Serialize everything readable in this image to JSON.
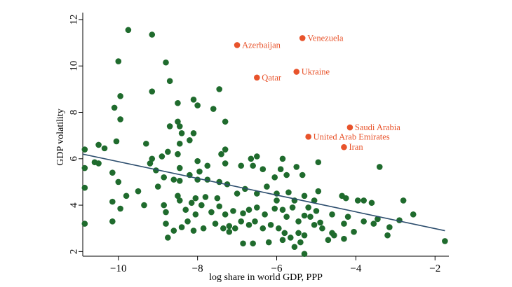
{
  "chart_data": {
    "type": "scatter",
    "xlabel": "log share in world GDP, PPP",
    "ylabel": "GDP volatility",
    "xlim": [
      -10.9,
      -1.65
    ],
    "ylim": [
      1.8,
      12.3
    ],
    "x_ticks": [
      -10,
      -8,
      -6,
      -4,
      -2
    ],
    "y_ticks": [
      2,
      4,
      6,
      8,
      10,
      12
    ],
    "grid": false,
    "colors": {
      "points": "#1f6b2d",
      "highlight": "#e8532b",
      "fit": "#2d4e6e"
    },
    "fit_line": {
      "x": [
        -10.9,
        -1.75
      ],
      "y": [
        6.2,
        2.9
      ]
    },
    "highlighted": [
      {
        "label": "Azerbaijan",
        "x": -7.0,
        "y": 10.9
      },
      {
        "label": "Venezuela",
        "x": -5.35,
        "y": 11.2
      },
      {
        "label": "Qatar",
        "x": -6.5,
        "y": 9.5
      },
      {
        "label": "Ukraine",
        "x": -5.5,
        "y": 9.75
      },
      {
        "label": "Saudi Arabia",
        "x": -4.15,
        "y": 7.35
      },
      {
        "label": "United Arab Emirates",
        "x": -5.2,
        "y": 6.95
      },
      {
        "label": "Iran",
        "x": -4.3,
        "y": 6.5
      }
    ],
    "points": [
      [
        -9.75,
        11.55
      ],
      [
        -9.15,
        11.35
      ],
      [
        -10.0,
        10.2
      ],
      [
        -8.8,
        10.15
      ],
      [
        -9.95,
        8.7
      ],
      [
        -10.1,
        8.2
      ],
      [
        -9.15,
        8.9
      ],
      [
        -9.95,
        7.7
      ],
      [
        -8.7,
        9.35
      ],
      [
        -8.5,
        8.4
      ],
      [
        -8.1,
        8.55
      ],
      [
        -8.0,
        8.3
      ],
      [
        -7.45,
        9.0
      ],
      [
        -7.6,
        8.15
      ],
      [
        -8.5,
        7.6
      ],
      [
        -8.7,
        7.4
      ],
      [
        -8.45,
        7.4
      ],
      [
        -8.4,
        7.1
      ],
      [
        -8.1,
        7.1
      ],
      [
        -7.3,
        7.6
      ],
      [
        -9.3,
        6.65
      ],
      [
        -8.75,
        6.3
      ],
      [
        -8.45,
        6.65
      ],
      [
        -8.2,
        6.8
      ],
      [
        -10.05,
        6.75
      ],
      [
        -10.5,
        6.6
      ],
      [
        -10.35,
        6.45
      ],
      [
        -10.85,
        6.4
      ],
      [
        -7.3,
        6.4
      ],
      [
        -9.15,
        6.0
      ],
      [
        -8.9,
        6.1
      ],
      [
        -8.5,
        6.2
      ],
      [
        -10.6,
        5.85
      ],
      [
        -10.5,
        5.8
      ],
      [
        -9.2,
        5.8
      ],
      [
        -8.0,
        5.9
      ],
      [
        -7.4,
        6.2
      ],
      [
        -6.65,
        6.0
      ],
      [
        -6.5,
        6.1
      ],
      [
        -5.85,
        6.0
      ],
      [
        -10.85,
        5.6
      ],
      [
        -10.15,
        5.4
      ],
      [
        -10.0,
        5.0
      ],
      [
        -9.05,
        5.5
      ],
      [
        -8.45,
        5.6
      ],
      [
        -8.2,
        5.3
      ],
      [
        -7.95,
        5.45
      ],
      [
        -7.75,
        5.7
      ],
      [
        -7.3,
        5.8
      ],
      [
        -6.9,
        5.7
      ],
      [
        -6.6,
        5.7
      ],
      [
        -6.35,
        5.55
      ],
      [
        -6.05,
        5.2
      ],
      [
        -5.9,
        5.55
      ],
      [
        -5.75,
        5.3
      ],
      [
        -5.5,
        5.65
      ],
      [
        -5.35,
        5.3
      ],
      [
        -4.95,
        5.85
      ],
      [
        -3.4,
        5.65
      ],
      [
        -10.85,
        4.75
      ],
      [
        -9.8,
        4.4
      ],
      [
        -9.5,
        4.6
      ],
      [
        -8.85,
        5.2
      ],
      [
        -8.6,
        5.1
      ],
      [
        -8.45,
        5.05
      ],
      [
        -8.0,
        5.1
      ],
      [
        -7.75,
        5.1
      ],
      [
        -7.45,
        5.0
      ],
      [
        -7.25,
        4.9
      ],
      [
        -7.0,
        4.5
      ],
      [
        -6.8,
        4.7
      ],
      [
        -6.5,
        4.5
      ],
      [
        -6.25,
        4.8
      ],
      [
        -6.0,
        4.5
      ],
      [
        -5.7,
        4.55
      ],
      [
        -5.55,
        4.2
      ],
      [
        -5.3,
        4.4
      ],
      [
        -5.05,
        4.2
      ],
      [
        -4.95,
        4.6
      ],
      [
        -4.35,
        4.4
      ],
      [
        -4.25,
        4.3
      ],
      [
        -3.95,
        4.2
      ],
      [
        -3.8,
        4.2
      ],
      [
        -3.6,
        4.1
      ],
      [
        -2.8,
        4.2
      ],
      [
        -10.15,
        4.15
      ],
      [
        -9.95,
        3.85
      ],
      [
        -9.35,
        4.0
      ],
      [
        -8.85,
        4.0
      ],
      [
        -8.8,
        3.7
      ],
      [
        -8.5,
        4.4
      ],
      [
        -8.45,
        4.2
      ],
      [
        -8.3,
        3.8
      ],
      [
        -8.15,
        4.1
      ],
      [
        -8.05,
        4.3
      ],
      [
        -7.9,
        4.0
      ],
      [
        -7.8,
        4.35
      ],
      [
        -7.65,
        3.7
      ],
      [
        -7.45,
        3.95
      ],
      [
        -7.3,
        3.6
      ],
      [
        -7.1,
        3.75
      ],
      [
        -6.85,
        3.65
      ],
      [
        -6.7,
        3.8
      ],
      [
        -6.5,
        3.9
      ],
      [
        -6.3,
        3.6
      ],
      [
        -6.05,
        3.85
      ],
      [
        -5.85,
        3.8
      ],
      [
        -5.75,
        3.5
      ],
      [
        -5.6,
        3.9
      ],
      [
        -5.45,
        3.3
      ],
      [
        -5.3,
        3.55
      ],
      [
        -5.15,
        3.5
      ],
      [
        -5.0,
        3.75
      ],
      [
        -4.9,
        3.25
      ],
      [
        -4.6,
        3.6
      ],
      [
        -4.2,
        3.5
      ],
      [
        -3.8,
        3.3
      ],
      [
        -3.55,
        3.2
      ],
      [
        -3.45,
        3.4
      ],
      [
        -3.15,
        3.05
      ],
      [
        -2.9,
        3.35
      ],
      [
        -2.55,
        3.6
      ],
      [
        -10.85,
        3.2
      ],
      [
        -10.15,
        3.3
      ],
      [
        -8.8,
        3.2
      ],
      [
        -8.6,
        2.9
      ],
      [
        -8.4,
        3.05
      ],
      [
        -8.25,
        3.3
      ],
      [
        -8.05,
        3.6
      ],
      [
        -7.85,
        3.0
      ],
      [
        -7.55,
        3.2
      ],
      [
        -7.35,
        3.0
      ],
      [
        -7.2,
        2.85
      ],
      [
        -7.05,
        3.0
      ],
      [
        -6.9,
        3.3
      ],
      [
        -6.7,
        3.15
      ],
      [
        -6.55,
        3.3
      ],
      [
        -6.35,
        3.0
      ],
      [
        -6.15,
        3.15
      ],
      [
        -5.95,
        3.0
      ],
      [
        -5.8,
        2.8
      ],
      [
        -5.65,
        2.6
      ],
      [
        -5.45,
        2.8
      ],
      [
        -5.3,
        2.7
      ],
      [
        -5.05,
        3.15
      ],
      [
        -4.85,
        3.0
      ],
      [
        -4.6,
        2.8
      ],
      [
        -4.3,
        3.2
      ],
      [
        -4.05,
        2.85
      ],
      [
        -3.2,
        2.7
      ],
      [
        -8.75,
        2.6
      ],
      [
        -8.1,
        2.9
      ],
      [
        -7.2,
        3.1
      ],
      [
        -6.85,
        2.35
      ],
      [
        -6.6,
        2.35
      ],
      [
        -6.2,
        2.4
      ],
      [
        -5.85,
        2.5
      ],
      [
        -5.55,
        2.2
      ],
      [
        -5.4,
        2.4
      ],
      [
        -5.3,
        1.9
      ],
      [
        -4.7,
        2.5
      ],
      [
        -4.55,
        2.7
      ],
      [
        -4.3,
        2.55
      ],
      [
        -1.75,
        2.45
      ],
      [
        -6.0,
        4.2
      ],
      [
        -7.5,
        4.3
      ],
      [
        -9.0,
        4.8
      ],
      [
        -5.2,
        3.9
      ]
    ]
  }
}
